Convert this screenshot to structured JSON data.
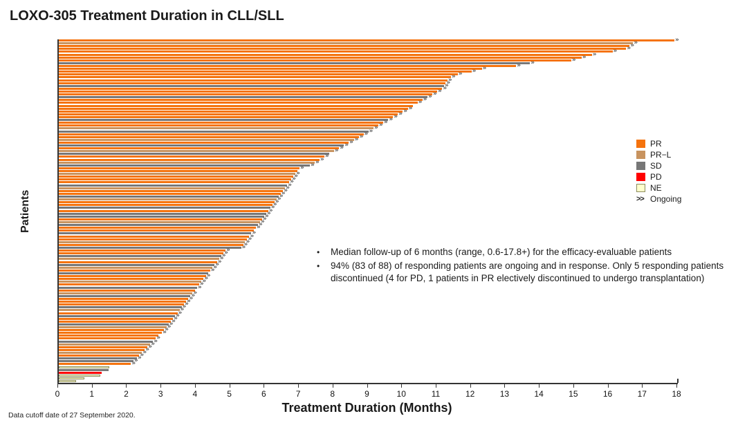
{
  "page": {
    "title": "LOXO-305 Treatment Duration in CLL/SLL",
    "footer": "Data cutoff date of 27 September 2020."
  },
  "annotations": {
    "bullets": [
      "Median follow-up of 6 months (range, 0.6-17.8+) for the efficacy-evaluable patients",
      "94% (83 of 88) of responding patients are ongoing and in response. Only 5 responding patients discontinued (4 for PD, 1 patients in PR electively discontinued to undergo transplantation)"
    ]
  },
  "legend": {
    "items": [
      {
        "key": "PR",
        "label": "PR",
        "color": "#F5730D"
      },
      {
        "key": "PRL",
        "label": "PR−L",
        "color": "#C8935F"
      },
      {
        "key": "SD",
        "label": "SD",
        "color": "#777777"
      },
      {
        "key": "PD",
        "label": "PD",
        "color": "#FF0000"
      },
      {
        "key": "NE",
        "label": "NE",
        "color": "#FFFFCC"
      }
    ],
    "ongoing_glyph": ">>",
    "ongoing_label": "Ongoing"
  },
  "chart_data": {
    "type": "bar",
    "subtype": "swimmer-plot-horizontal",
    "title": "LOXO-305 Treatment Duration in CLL/SLL",
    "xlabel": "Treatment Duration (Months)",
    "ylabel": "Patients",
    "xlim": [
      0,
      18
    ],
    "x_ticks": [
      0,
      1,
      2,
      3,
      4,
      5,
      6,
      7,
      8,
      9,
      10,
      11,
      12,
      13,
      14,
      15,
      16,
      17,
      18
    ],
    "grid": false,
    "legend_position": "right",
    "ongoing_glyph": "»",
    "colors": {
      "PR": "#F5730D",
      "PRL": "#C8935F",
      "SD": "#777777",
      "PD": "#FF0000",
      "NE": "#FFFFCC"
    },
    "bar_fields": [
      "duration_months",
      "best_response",
      "ongoing"
    ],
    "bars": [
      [
        17.9,
        "PR",
        1
      ],
      [
        16.7,
        "PRL",
        1
      ],
      [
        16.6,
        "PR",
        1
      ],
      [
        16.5,
        "PR",
        1
      ],
      [
        16.1,
        "PR",
        1
      ],
      [
        15.5,
        "PR",
        1
      ],
      [
        15.2,
        "PR",
        1
      ],
      [
        14.9,
        "PR",
        1
      ],
      [
        13.7,
        "SD",
        1
      ],
      [
        13.3,
        "PR",
        1
      ],
      [
        12.3,
        "PR",
        1
      ],
      [
        12.0,
        "PR",
        1
      ],
      [
        11.6,
        "PR",
        1
      ],
      [
        11.4,
        "PR",
        1
      ],
      [
        11.3,
        "PR",
        1
      ],
      [
        11.25,
        "PR",
        1
      ],
      [
        11.2,
        "SD",
        1
      ],
      [
        11.15,
        "PR",
        1
      ],
      [
        11.0,
        "PR",
        1
      ],
      [
        10.86,
        "PR",
        1
      ],
      [
        10.72,
        "SD",
        1
      ],
      [
        10.57,
        "PR",
        1
      ],
      [
        10.43,
        "PR",
        1
      ],
      [
        10.29,
        "PR",
        0
      ],
      [
        10.15,
        "PR",
        1
      ],
      [
        10.0,
        "PR",
        1
      ],
      [
        9.86,
        "PR",
        1
      ],
      [
        9.72,
        "PR",
        1
      ],
      [
        9.58,
        "SD",
        1
      ],
      [
        9.43,
        "PR",
        1
      ],
      [
        9.29,
        "PR",
        1
      ],
      [
        9.15,
        "PRL",
        1
      ],
      [
        9.0,
        "SD",
        1
      ],
      [
        8.86,
        "PR",
        1
      ],
      [
        8.72,
        "PR",
        1
      ],
      [
        8.58,
        "PRL",
        1
      ],
      [
        8.43,
        "PR",
        1
      ],
      [
        8.29,
        "SD",
        1
      ],
      [
        8.15,
        "PR",
        1
      ],
      [
        8.0,
        "PRL",
        1
      ],
      [
        7.86,
        "SD",
        0
      ],
      [
        7.72,
        "PR",
        1
      ],
      [
        7.58,
        "PR",
        1
      ],
      [
        7.44,
        "PRL",
        1
      ],
      [
        7.3,
        "SD",
        1
      ],
      [
        7.0,
        "PR",
        1
      ],
      [
        6.94,
        "PR",
        0
      ],
      [
        6.88,
        "PRL",
        1
      ],
      [
        6.82,
        "PR",
        1
      ],
      [
        6.76,
        "PR",
        1
      ],
      [
        6.7,
        "PR",
        1
      ],
      [
        6.64,
        "SD",
        1
      ],
      [
        6.58,
        "PRL",
        1
      ],
      [
        6.52,
        "PR",
        1
      ],
      [
        6.45,
        "PR",
        1
      ],
      [
        6.39,
        "SD",
        1
      ],
      [
        6.33,
        "PRL",
        1
      ],
      [
        6.27,
        "PR",
        1
      ],
      [
        6.21,
        "PR",
        1
      ],
      [
        6.15,
        "SD",
        1
      ],
      [
        6.09,
        "PR",
        1
      ],
      [
        6.03,
        "SD",
        1
      ],
      [
        5.97,
        "SD",
        1
      ],
      [
        5.91,
        "PR",
        1
      ],
      [
        5.85,
        "PRL",
        1
      ],
      [
        5.79,
        "SD",
        1
      ],
      [
        5.73,
        "PR",
        1
      ],
      [
        5.67,
        "PR",
        0
      ],
      [
        5.6,
        "SD",
        1
      ],
      [
        5.54,
        "PR",
        1
      ],
      [
        5.48,
        "PR",
        1
      ],
      [
        5.42,
        "PRL",
        1
      ],
      [
        5.36,
        "PR",
        1
      ],
      [
        5.3,
        "SD",
        1
      ],
      [
        4.85,
        "PR",
        1
      ],
      [
        4.79,
        "PR",
        1
      ],
      [
        4.72,
        "SD",
        1
      ],
      [
        4.66,
        "PRL",
        1
      ],
      [
        4.6,
        "PR",
        1
      ],
      [
        4.53,
        "SD",
        1
      ],
      [
        4.47,
        "PRL",
        1
      ],
      [
        4.4,
        "PR",
        1
      ],
      [
        4.34,
        "SD",
        0
      ],
      [
        4.28,
        "PR",
        1
      ],
      [
        4.21,
        "PR",
        1
      ],
      [
        4.15,
        "PRL",
        1
      ],
      [
        4.08,
        "PR",
        1
      ],
      [
        4.02,
        "SD",
        1
      ],
      [
        3.96,
        "PR",
        0
      ],
      [
        3.89,
        "PRL",
        1
      ],
      [
        3.83,
        "SD",
        1
      ],
      [
        3.77,
        "PR",
        1
      ],
      [
        3.7,
        "PR",
        1
      ],
      [
        3.64,
        "PR",
        1
      ],
      [
        3.57,
        "SD",
        1
      ],
      [
        3.51,
        "PRL",
        1
      ],
      [
        3.45,
        "PR",
        1
      ],
      [
        3.38,
        "SD",
        1
      ],
      [
        3.32,
        "PR",
        1
      ],
      [
        3.26,
        "PR",
        1
      ],
      [
        3.19,
        "SD",
        1
      ],
      [
        3.13,
        "PRL",
        1
      ],
      [
        3.06,
        "PR",
        1
      ],
      [
        3.0,
        "PR",
        1
      ],
      [
        2.9,
        "PR",
        0
      ],
      [
        2.82,
        "PR",
        1
      ],
      [
        2.74,
        "SD",
        1
      ],
      [
        2.66,
        "PRL",
        1
      ],
      [
        2.58,
        "PR",
        1
      ],
      [
        2.5,
        "PR",
        1
      ],
      [
        2.42,
        "PRL",
        1
      ],
      [
        2.34,
        "PR",
        1
      ],
      [
        2.27,
        "SD",
        1
      ],
      [
        2.17,
        "SD",
        1
      ],
      [
        2.1,
        "PR",
        1
      ],
      [
        1.47,
        "NE",
        0
      ],
      [
        1.44,
        "SD",
        0
      ],
      [
        1.25,
        "PD",
        0
      ],
      [
        1.2,
        "NE",
        0
      ],
      [
        0.74,
        "NE",
        0
      ],
      [
        0.5,
        "NE",
        0
      ]
    ]
  }
}
